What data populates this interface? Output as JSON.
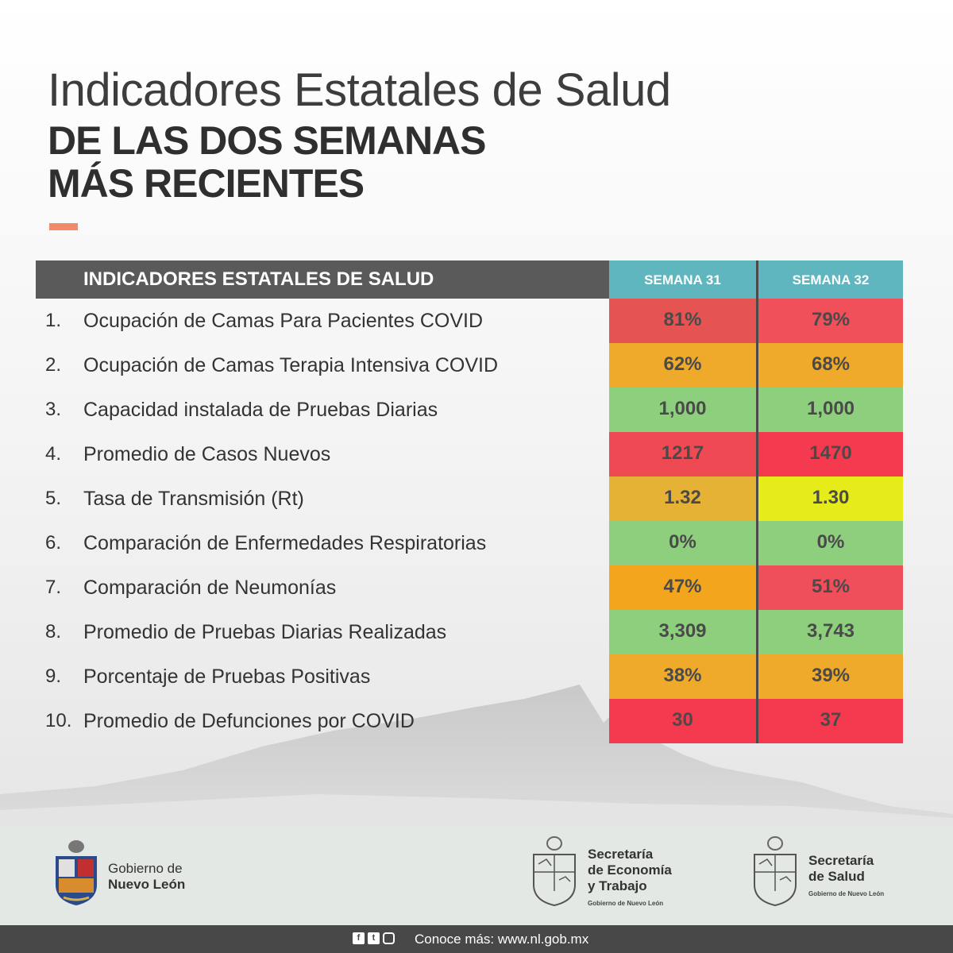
{
  "title": {
    "line1": "Indicadores Estatales de Salud",
    "line2": "DE LAS DOS SEMANAS",
    "line3": "MÁS RECIENTES"
  },
  "table": {
    "header": "INDICADORES ESTATALES DE SALUD",
    "week1": "SEMANA 31",
    "week2": "SEMANA 32",
    "rows": [
      {
        "num": "1.",
        "label": "Ocupación de Camas Para Pacientes COVID",
        "w1": "81%",
        "w2": "79%",
        "c1": "#e65353",
        "c2": "#f0505a"
      },
      {
        "num": "2.",
        "label": "Ocupación de Camas Terapia Intensiva COVID",
        "w1": "62%",
        "w2": "68%",
        "c1": "#efaa2c",
        "c2": "#efaa2c"
      },
      {
        "num": "3.",
        "label": "Capacidad instalada de Pruebas Diarias",
        "w1": "1,000",
        "w2": "1,000",
        "c1": "#8ecf7e",
        "c2": "#8ecf7e"
      },
      {
        "num": "4.",
        "label": "Promedio de Casos Nuevos",
        "w1": "1217",
        "w2": "1470",
        "c1": "#ef4954",
        "c2": "#f53a4f"
      },
      {
        "num": "5.",
        "label": "Tasa de Transmisión (Rt)",
        "w1": "1.32",
        "w2": "1.30",
        "c1": "#e5b235",
        "c2": "#e6ec1a"
      },
      {
        "num": "6.",
        "label": "Comparación de Enfermedades Respiratorias",
        "w1": "0%",
        "w2": "0%",
        "c1": "#8ecf7e",
        "c2": "#8ecf7e"
      },
      {
        "num": "7.",
        "label": "Comparación de Neumonías",
        "w1": "47%",
        "w2": "51%",
        "c1": "#f2a51d",
        "c2": "#ef4f5a"
      },
      {
        "num": "8.",
        "label": "Promedio de Pruebas Diarias Realizadas",
        "w1": "3,309",
        "w2": "3,743",
        "c1": "#8ecf7e",
        "c2": "#8ecf7e"
      },
      {
        "num": "9.",
        "label": "Porcentaje de Pruebas Positivas",
        "w1": "38%",
        "w2": "39%",
        "c1": "#efaa2c",
        "c2": "#efaa2c"
      },
      {
        "num": "10.",
        "label": "Promedio de Defunciones por COVID",
        "w1": "30",
        "w2": "37",
        "c1": "#f53a4f",
        "c2": "#f53a4f"
      }
    ]
  },
  "footer": {
    "gov_line1": "Gobierno de",
    "gov_line2": "Nuevo León",
    "eco_line1": "Secretaría",
    "eco_line2": "de Economía",
    "eco_line3": "y Trabajo",
    "eco_small": "Gobierno de Nuevo León",
    "sal_line1": "Secretaría",
    "sal_line2": "de Salud",
    "sal_small": "Gobierno de Nuevo León"
  },
  "bottom": {
    "know_more": "Conoce más: www.nl.gob.mx",
    "icons": [
      "facebook-icon",
      "twitter-icon",
      "instagram-icon"
    ]
  },
  "colors": {
    "header_dark": "#5a5a5a",
    "header_teal": "#5fb6be",
    "accent": "#f28a6a",
    "footer_bg": "#e4e8e5",
    "bottom_bar": "#484848"
  }
}
